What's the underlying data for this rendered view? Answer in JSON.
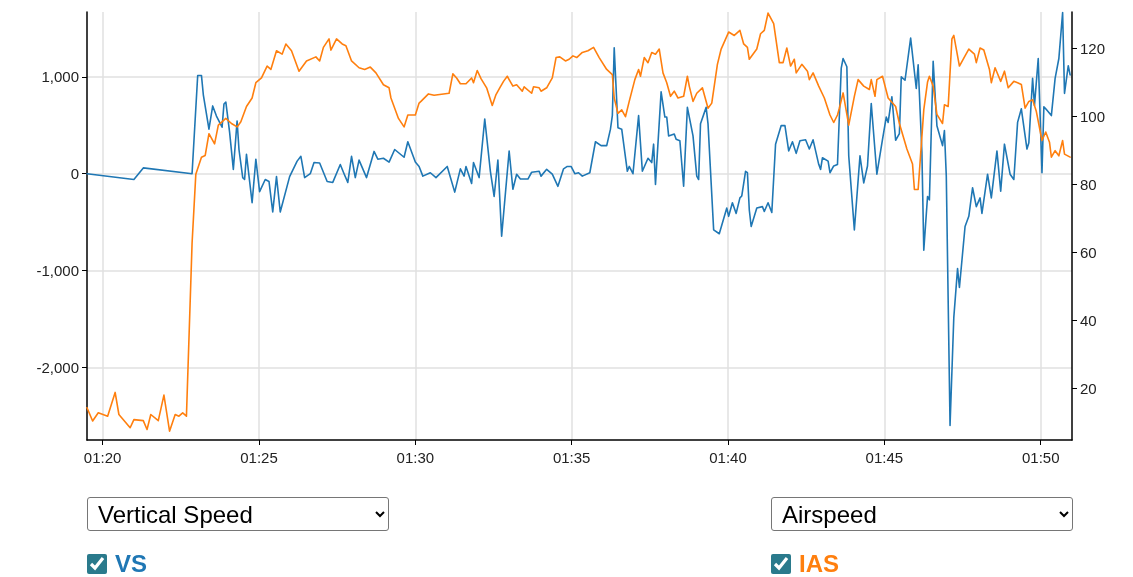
{
  "chart_data": {
    "type": "line",
    "annotations": [
      "Vertical Speed",
      "Airspeed"
    ],
    "legend": "bottom",
    "grid": true,
    "marker": "none",
    "line_style": "solid",
    "xlim": [
      1.325,
      1.85
    ],
    "xticks": [
      {
        "value": 1.33333,
        "label": "01:20"
      },
      {
        "value": 1.41667,
        "label": "01:25"
      },
      {
        "value": 1.5,
        "label": "01:30"
      },
      {
        "value": 1.58333,
        "label": "01:35"
      },
      {
        "value": 1.66667,
        "label": "01:40"
      },
      {
        "value": 1.75,
        "label": "01:45"
      },
      {
        "value": 1.83333,
        "label": "01:50"
      }
    ],
    "ylim": [
      -2750,
      1670
    ],
    "yticks": [
      {
        "value": -2000,
        "label": "-2,000"
      },
      {
        "value": -1000,
        "label": "-1,000"
      },
      0,
      {
        "value": 1000,
        "label": "1,000"
      }
    ],
    "y2lim": [
      4.8,
      130.7
    ],
    "y2ticks": [
      20,
      40,
      60,
      80,
      100,
      120
    ],
    "series": [
      {
        "name": "VS",
        "color": "#1f77b4",
        "x": [
          1.325,
          1.35,
          1.355,
          1.381,
          1.384,
          1.386,
          1.387,
          1.39,
          1.392,
          1.394,
          1.397,
          1.398,
          1.399,
          1.401,
          1.403,
          1.405,
          1.406,
          1.408,
          1.409,
          1.41,
          1.413,
          1.415,
          1.417,
          1.42,
          1.422,
          1.424,
          1.426,
          1.428,
          1.433,
          1.437,
          1.439,
          1.441,
          1.444,
          1.446,
          1.449,
          1.453,
          1.456,
          1.46,
          1.462,
          1.464,
          1.466,
          1.468,
          1.47,
          1.474,
          1.478,
          1.48,
          1.483,
          1.486,
          1.489,
          1.494,
          1.496,
          1.5,
          1.502,
          1.504,
          1.508,
          1.511,
          1.517,
          1.521,
          1.524,
          1.526,
          1.527,
          1.53,
          1.531,
          1.534,
          1.537,
          1.54,
          1.542,
          1.544,
          1.546,
          1.55,
          1.552,
          1.554,
          1.556,
          1.56,
          1.562,
          1.566,
          1.567,
          1.57,
          1.573,
          1.576,
          1.579,
          1.581,
          1.583,
          1.585,
          1.587,
          1.589,
          1.593,
          1.596,
          1.599,
          1.602,
          1.604,
          1.605,
          1.606,
          1.608,
          1.61,
          1.613,
          1.614,
          1.616,
          1.619,
          1.621,
          1.624,
          1.626,
          1.627,
          1.628,
          1.631,
          1.633,
          1.634,
          1.635,
          1.638,
          1.639,
          1.641,
          1.643,
          1.645,
          1.648,
          1.65,
          1.651,
          1.652,
          1.655,
          1.656,
          1.659,
          1.662,
          1.666,
          1.667,
          1.669,
          1.671,
          1.673,
          1.674,
          1.676,
          1.677,
          1.678,
          1.679,
          1.682,
          1.685,
          1.686,
          1.688,
          1.69,
          1.692,
          1.695,
          1.697,
          1.699,
          1.701,
          1.703,
          1.705,
          1.708,
          1.71,
          1.712,
          1.715,
          1.716,
          1.717,
          1.72,
          1.721,
          1.723,
          1.725,
          1.727,
          1.728,
          1.73,
          1.731,
          1.734,
          1.737,
          1.739,
          1.741,
          1.743,
          1.746,
          1.749,
          1.751,
          1.752,
          1.754,
          1.756,
          1.758,
          1.759,
          1.761,
          1.764,
          1.767,
          1.768,
          1.77,
          1.771,
          1.773,
          1.774,
          1.776,
          1.778,
          1.781,
          1.782,
          1.783,
          1.785,
          1.787,
          1.789,
          1.79,
          1.793,
          1.795,
          1.797,
          1.799,
          1.801,
          1.802,
          1.805,
          1.807,
          1.81,
          1.812,
          1.814,
          1.817,
          1.819,
          1.821,
          1.823,
          1.826,
          1.827,
          1.829,
          1.83,
          1.832,
          1.834,
          1.835,
          1.836,
          1.839,
          1.841,
          1.843,
          1.845,
          1.846,
          1.848,
          1.849
        ],
        "values": [
          0,
          -60,
          60,
          0,
          1015,
          1015,
          815,
          460,
          700,
          595,
          480,
          720,
          740,
          430,
          45,
          545,
          250,
          -40,
          -60,
          200,
          -300,
          150,
          -185,
          -60,
          -80,
          -395,
          -30,
          -395,
          -30,
          130,
          180,
          -40,
          0,
          115,
          110,
          -80,
          -90,
          95,
          0,
          -90,
          180,
          -40,
          140,
          -40,
          230,
          150,
          160,
          120,
          250,
          170,
          330,
          120,
          75,
          -25,
          10,
          -40,
          75,
          -190,
          50,
          -25,
          75,
          -100,
          115,
          -40,
          565,
          25,
          -235,
          140,
          -645,
          235,
          -160,
          -5,
          -55,
          -55,
          15,
          25,
          -25,
          45,
          -5,
          -130,
          50,
          75,
          75,
          0,
          10,
          -25,
          10,
          330,
          290,
          290,
          460,
          600,
          1300,
          475,
          460,
          25,
          75,
          0,
          600,
          25,
          160,
          115,
          305,
          -110,
          845,
          585,
          585,
          390,
          410,
          355,
          340,
          -130,
          685,
          390,
          -25,
          -60,
          515,
          685,
          515,
          -580,
          -620,
          -355,
          -440,
          -300,
          -410,
          -250,
          -230,
          25,
          10,
          -375,
          -545,
          -355,
          -340,
          -390,
          -300,
          -400,
          305,
          497,
          497,
          235,
          330,
          210,
          340,
          350,
          255,
          350,
          97,
          45,
          165,
          130,
          10,
          80,
          95,
          1090,
          1190,
          1105,
          185,
          -580,
          185,
          -95,
          80,
          725,
          -5,
          355,
          585,
          530,
          795,
          345,
          415,
          1000,
          965,
          1400,
          880,
          1125,
          220,
          -790,
          -235,
          -270,
          1160,
          495,
          290,
          445,
          -25,
          -2600,
          -1485,
          -980,
          -1175,
          -545,
          -440,
          -145,
          -340,
          -250,
          -410,
          -5,
          -250,
          235,
          -180,
          305,
          -5,
          -60,
          530,
          670,
          255,
          320,
          985,
          705,
          1190,
          10,
          690,
          670,
          600,
          985,
          1190,
          1665,
          830,
          1115,
          1020
        ]
      },
      {
        "name": "IAS",
        "color": "#ff7f0e",
        "axis": "y2",
        "x": [
          1.325,
          1.328,
          1.331,
          1.336,
          1.34,
          1.342,
          1.348,
          1.35,
          1.355,
          1.357,
          1.359,
          1.363,
          1.366,
          1.369,
          1.372,
          1.374,
          1.376,
          1.378,
          1.381,
          1.383,
          1.386,
          1.388,
          1.39,
          1.393,
          1.395,
          1.399,
          1.402,
          1.405,
          1.407,
          1.41,
          1.413,
          1.415,
          1.418,
          1.421,
          1.423,
          1.426,
          1.429,
          1.431,
          1.434,
          1.438,
          1.442,
          1.447,
          1.449,
          1.451,
          1.454,
          1.455,
          1.458,
          1.461,
          1.463,
          1.466,
          1.47,
          1.473,
          1.476,
          1.479,
          1.483,
          1.486,
          1.487,
          1.491,
          1.494,
          1.496,
          1.5,
          1.502,
          1.503,
          1.507,
          1.51,
          1.515,
          1.518,
          1.52,
          1.522,
          1.524,
          1.527,
          1.53,
          1.531,
          1.533,
          1.535,
          1.538,
          1.541,
          1.543,
          1.545,
          1.547,
          1.549,
          1.552,
          1.554,
          1.557,
          1.558,
          1.562,
          1.563,
          1.566,
          1.567,
          1.57,
          1.573,
          1.575,
          1.577,
          1.58,
          1.582,
          1.584,
          1.586,
          1.589,
          1.592,
          1.595,
          1.598,
          1.602,
          1.605,
          1.606,
          1.608,
          1.61,
          1.612,
          1.614,
          1.617,
          1.619,
          1.62,
          1.622,
          1.624,
          1.626,
          1.628,
          1.63,
          1.632,
          1.634,
          1.636,
          1.638,
          1.64,
          1.643,
          1.645,
          1.646,
          1.648,
          1.65,
          1.653,
          1.656,
          1.658,
          1.661,
          1.663,
          1.667,
          1.67,
          1.673,
          1.675,
          1.677,
          1.678,
          1.682,
          1.684,
          1.686,
          1.688,
          1.691,
          1.694,
          1.696,
          1.698,
          1.7,
          1.702,
          1.703,
          1.706,
          1.709,
          1.71,
          1.712,
          1.715,
          1.718,
          1.721,
          1.723,
          1.725,
          1.726,
          1.728,
          1.731,
          1.734,
          1.736,
          1.739,
          1.742,
          1.743,
          1.745,
          1.746,
          1.749,
          1.752,
          1.756,
          1.758,
          1.762,
          1.765,
          1.766,
          1.768,
          1.771,
          1.773,
          1.774,
          1.776,
          1.778,
          1.781,
          1.782,
          1.784,
          1.786,
          1.787,
          1.79,
          1.793,
          1.795,
          1.798,
          1.799,
          1.801,
          1.803,
          1.806,
          1.807,
          1.809,
          1.812,
          1.814,
          1.816,
          1.819,
          1.821,
          1.823,
          1.825,
          1.827,
          1.829,
          1.831,
          1.834,
          1.836,
          1.838,
          1.839,
          1.841,
          1.843,
          1.845,
          1.846,
          1.849
        ],
        "values": [
          14.3,
          10.4,
          12.8,
          11.8,
          18.8,
          12.3,
          8.4,
          10.8,
          10.5,
          7.9,
          12.3,
          10.5,
          18,
          7.4,
          12.3,
          11.8,
          12.8,
          11.8,
          62.6,
          83,
          88,
          88.5,
          94.9,
          91.9,
          97.4,
          99.4,
          97.9,
          96.9,
          98.4,
          102.9,
          105.4,
          109.9,
          111.3,
          114.8,
          113.8,
          119.3,
          118.3,
          121.3,
          119.3,
          113.3,
          116.3,
          117.5,
          116.3,
          120.3,
          122.8,
          119.5,
          122.8,
          121.3,
          120.8,
          116.3,
          114.3,
          113.8,
          114.5,
          112.8,
          109.3,
          108.4,
          105.4,
          99.4,
          96.9,
          100.4,
          100.4,
          103.9,
          104.4,
          106.6,
          106.2,
          106.6,
          106.8,
          112.5,
          111.3,
          109.6,
          109.6,
          111.3,
          109.9,
          113.5,
          111.1,
          108.4,
          103.2,
          106.4,
          108.4,
          110.3,
          111.8,
          108.9,
          109.3,
          107.4,
          108.7,
          106.8,
          108.7,
          108.4,
          107.4,
          108.4,
          111.3,
          117.3,
          117.5,
          116.3,
          116.8,
          117.8,
          117.3,
          118.8,
          119.3,
          120.3,
          117.3,
          113.8,
          112.3,
          105.4,
          100.9,
          101.9,
          99.9,
          104.4,
          110.8,
          113.8,
          111.8,
          117.3,
          115.8,
          118.8,
          118.3,
          119.8,
          112.8,
          109.9,
          105.9,
          107.4,
          105.4,
          105.9,
          111.8,
          108.9,
          104.4,
          106.8,
          108.4,
          102.4,
          103.9,
          115.3,
          119.8,
          124.8,
          123.8,
          125.3,
          121.3,
          120.3,
          116.8,
          119.8,
          124.3,
          125.3,
          130.4,
          127.3,
          115.8,
          115.8,
          120.1,
          114.8,
          116.8,
          112.8,
          115.3,
          113.3,
          110.8,
          112.8,
          108.9,
          105.4,
          100.4,
          98.2,
          100.4,
          102.4,
          106.9,
          97.4,
          105.9,
          110.8,
          108.9,
          107.9,
          110.8,
          105.9,
          110.8,
          111.8,
          105.4,
          102.9,
          97.9,
          90.4,
          86,
          78.5,
          78.5,
          101.9,
          110.1,
          111.8,
          108.9,
          100.6,
          97.9,
          103.4,
          102.9,
          122.8,
          123.8,
          114.8,
          117.8,
          119.8,
          118.3,
          115.8,
          120.1,
          119.5,
          113.8,
          109.9,
          114.3,
          110.3,
          113.3,
          108.4,
          110.3,
          109.9,
          109.4,
          102.4,
          104.4,
          104.9,
          101.4,
          92.9,
          95.4,
          92.4,
          88,
          89.9,
          88.4,
          92.9,
          88.9,
          88
        ]
      }
    ]
  }
}
